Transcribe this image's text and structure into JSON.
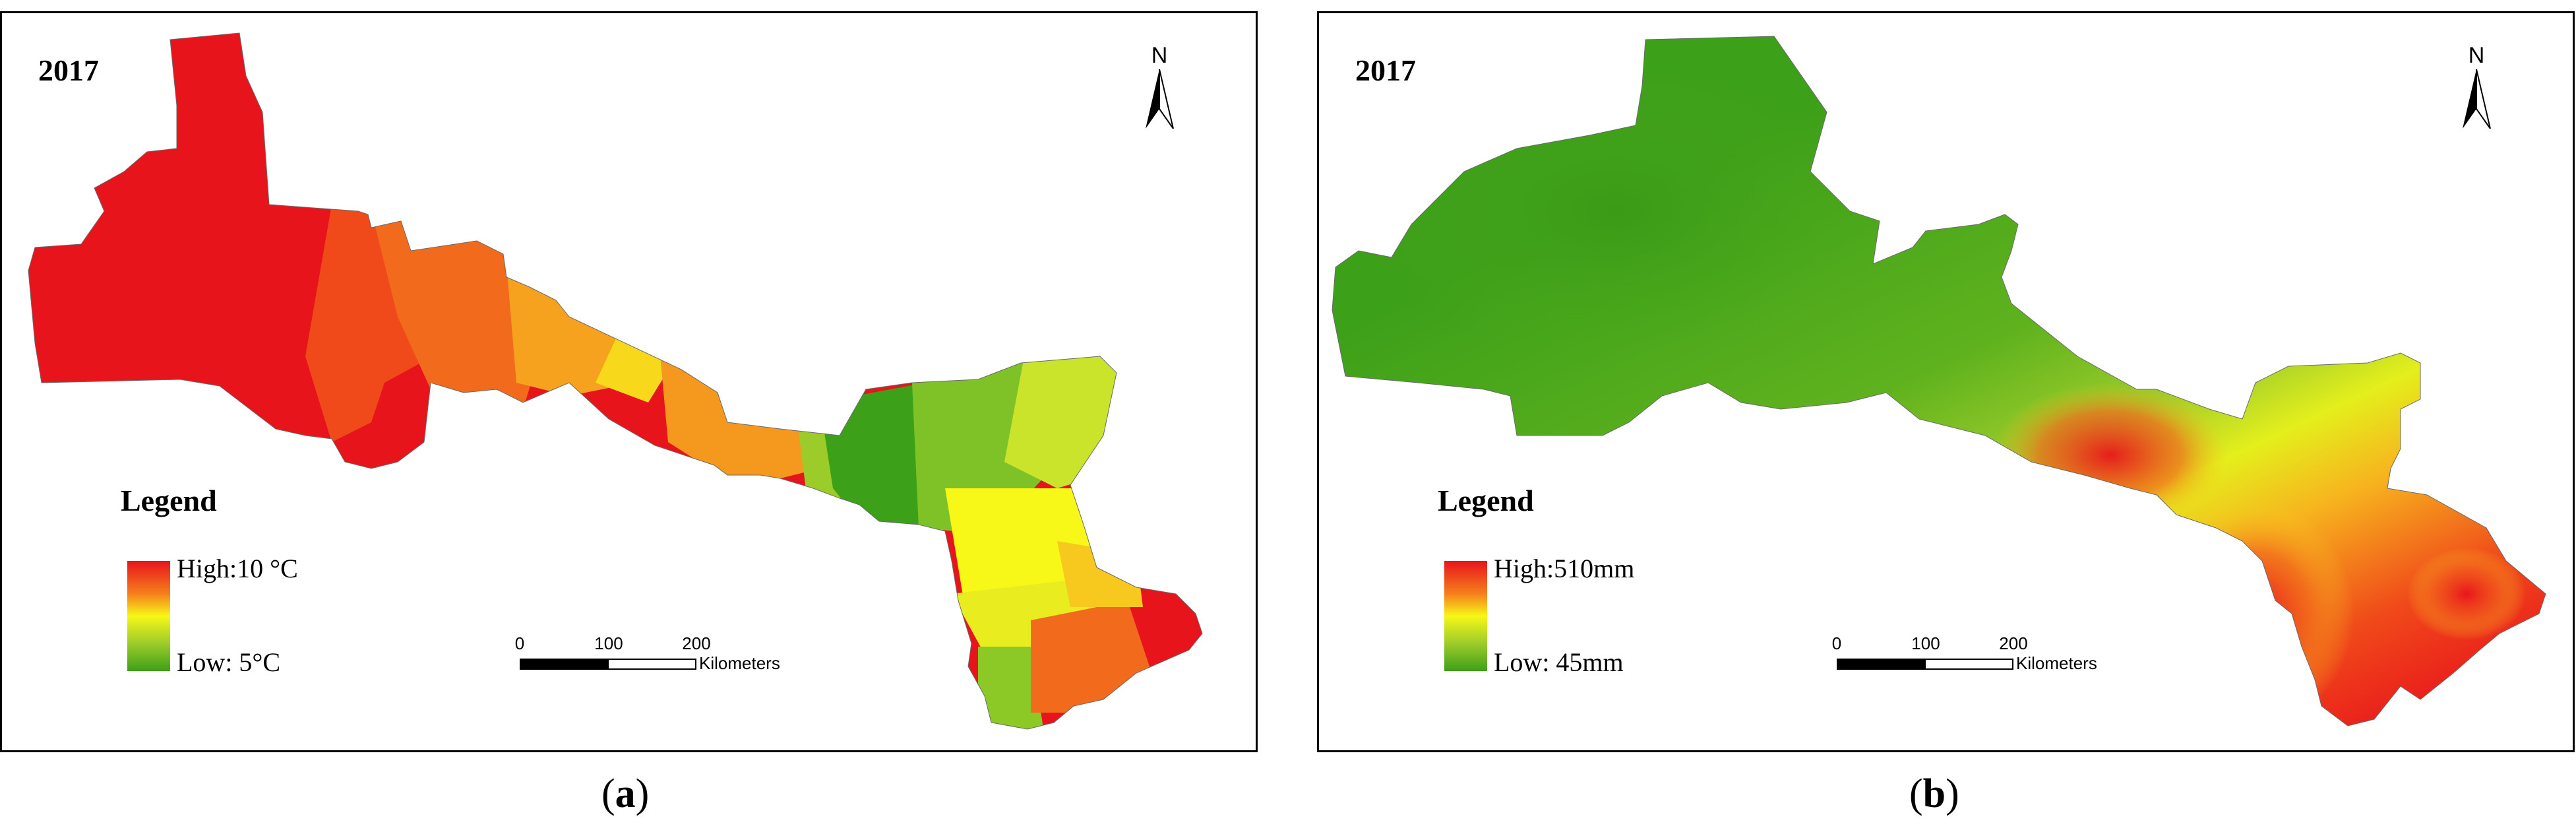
{
  "panels": [
    {
      "id": "a",
      "year": "2017",
      "north_label": "N",
      "legend": {
        "title": "Legend",
        "high": "High:10 °C",
        "low": "Low: 5°C",
        "colors": [
          "#e8141c",
          "#f5801c",
          "#f7f718",
          "#9ccc2a",
          "#3da019"
        ]
      },
      "scale": {
        "ticks": [
          "0",
          "100",
          "200"
        ],
        "unit": "Kilometers"
      },
      "caption": {
        "open": "(",
        "letter": "a",
        "close": ")"
      }
    },
    {
      "id": "b",
      "year": "2017",
      "north_label": "N",
      "legend": {
        "title": "Legend",
        "high": "High:510mm",
        "low": "Low: 45mm",
        "colors": [
          "#e8141c",
          "#f5801c",
          "#f7f718",
          "#9ccc2a",
          "#3da019"
        ]
      },
      "scale": {
        "ticks": [
          "0",
          "100",
          "200"
        ],
        "unit": "Kilometers"
      },
      "caption": {
        "open": "(",
        "letter": "b",
        "close": ")"
      }
    }
  ]
}
